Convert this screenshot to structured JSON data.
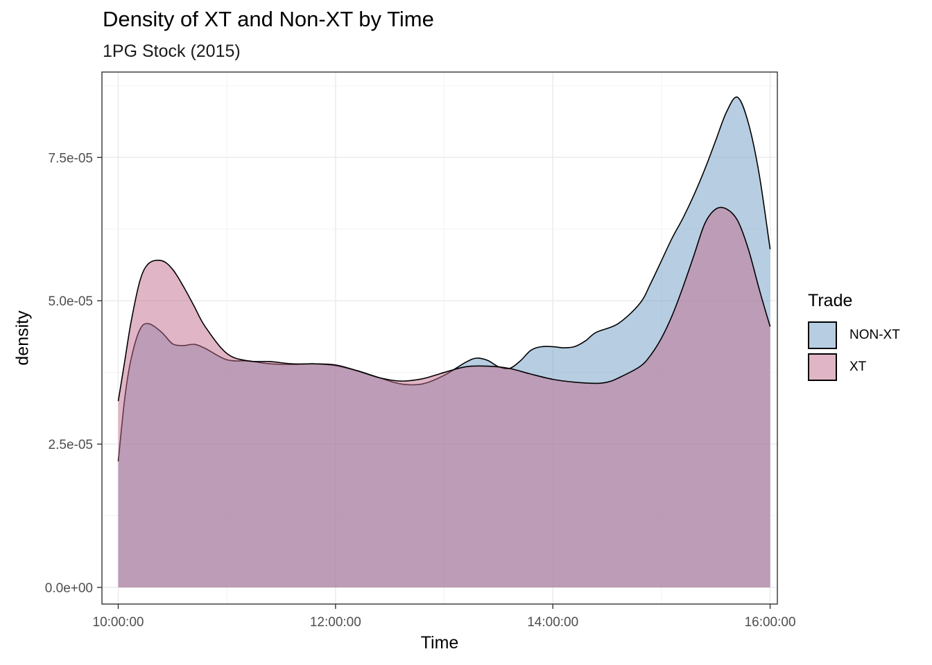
{
  "chart_data": {
    "type": "area",
    "title": "Density of XT and Non-XT by Time",
    "subtitle": "1PG Stock (2015)",
    "xlabel": "Time",
    "ylabel": "density",
    "xlim": [
      35460,
      57840
    ],
    "ylim": [
      -2.9e-06,
      8.99e-05
    ],
    "x_ticks": [
      36000,
      43200,
      50400,
      57600
    ],
    "x_tick_labels": [
      "10:00:00",
      "12:00:00",
      "14:00:00",
      "16:00:00"
    ],
    "y_ticks": [
      0,
      2.5e-05,
      5e-05,
      7.5e-05
    ],
    "y_tick_labels": [
      "0.0e+00",
      "2.5e-05",
      "5.0e-05",
      "7.5e-05"
    ],
    "grid": true,
    "legend_title": "Trade",
    "legend_position": "right",
    "series": [
      {
        "name": "NON-XT",
        "color": "#6f9cc4",
        "x": [
          36000,
          36216,
          36432,
          36720,
          37008,
          37440,
          37800,
          38160,
          38520,
          38880,
          39600,
          40320,
          41040,
          41760,
          42480,
          43200,
          43920,
          44640,
          45360,
          46080,
          46800,
          47520,
          47880,
          48240,
          48600,
          48960,
          49320,
          49680,
          50040,
          50400,
          50760,
          51120,
          51480,
          51840,
          52560,
          53280,
          53640,
          54000,
          54360,
          54720,
          55080,
          55440,
          55800,
          56160,
          56520,
          56880,
          57240,
          57600
        ],
        "values": [
          2.2e-05,
          3.3e-05,
          4e-05,
          4.5e-05,
          4.6e-05,
          4.45e-05,
          4.25e-05,
          4.22e-05,
          4.24e-05,
          4.17e-05,
          3.97e-05,
          3.95e-05,
          3.9e-05,
          3.89e-05,
          3.9e-05,
          3.87e-05,
          3.78e-05,
          3.66e-05,
          3.55e-05,
          3.55e-05,
          3.7e-05,
          3.93e-05,
          4e-05,
          3.96e-05,
          3.85e-05,
          3.82e-05,
          3.95e-05,
          4.14e-05,
          4.2e-05,
          4.2e-05,
          4.18e-05,
          4.2e-05,
          4.3e-05,
          4.45e-05,
          4.6e-05,
          4.95e-05,
          5.3e-05,
          5.7e-05,
          6.1e-05,
          6.45e-05,
          6.85e-05,
          7.3e-05,
          7.8e-05,
          8.3e-05,
          8.55e-05,
          8.1e-05,
          7.2e-05,
          5.9e-05
        ]
      },
      {
        "name": "XT",
        "color": "#c26b8c",
        "x": [
          36000,
          36216,
          36432,
          36720,
          37008,
          37440,
          37800,
          38160,
          38520,
          38880,
          39600,
          40320,
          41040,
          41760,
          42480,
          43200,
          43920,
          44640,
          45360,
          46080,
          46800,
          47520,
          48240,
          48960,
          49680,
          50400,
          51120,
          51840,
          52200,
          52560,
          53280,
          53640,
          54000,
          54360,
          54720,
          55080,
          55440,
          55800,
          56160,
          56520,
          56880,
          57240,
          57600
        ],
        "values": [
          3.25e-05,
          3.95e-05,
          4.65e-05,
          5.35e-05,
          5.65e-05,
          5.7e-05,
          5.55e-05,
          5.25e-05,
          4.9e-05,
          4.55e-05,
          4.08e-05,
          3.95e-05,
          3.94e-05,
          3.9e-05,
          3.9e-05,
          3.88e-05,
          3.78e-05,
          3.66e-05,
          3.6e-05,
          3.64e-05,
          3.75e-05,
          3.85e-05,
          3.86e-05,
          3.82e-05,
          3.72e-05,
          3.63e-05,
          3.58e-05,
          3.56e-05,
          3.58e-05,
          3.65e-05,
          3.85e-05,
          4.05e-05,
          4.35e-05,
          4.75e-05,
          5.25e-05,
          5.8e-05,
          6.35e-05,
          6.6e-05,
          6.6e-05,
          6.4e-05,
          5.9e-05,
          5.2e-05,
          4.55e-05
        ]
      }
    ]
  }
}
